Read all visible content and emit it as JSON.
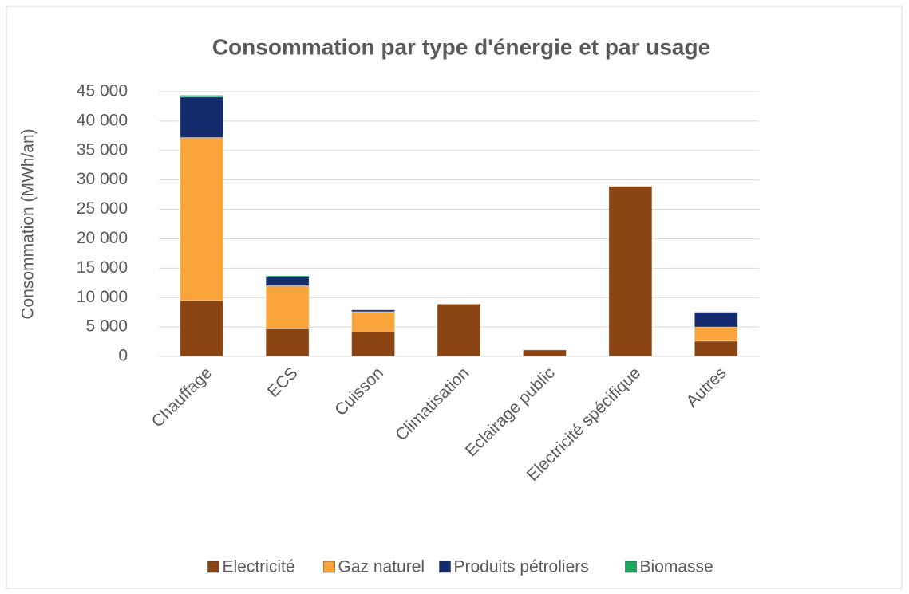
{
  "chart_data": {
    "type": "stacked_bar",
    "title": "Consommation par type d'énergie et par usage",
    "y_label": "Consommation (MWh/an)",
    "categories": [
      "Chauffage",
      "ECS",
      "Cuisson",
      "Climatisation",
      "Eclairage public",
      "Electricité spécifique",
      "Autres"
    ],
    "series": [
      {
        "name": "Electricité",
        "color": "#8b4513",
        "values": [
          9500,
          4700,
          4300,
          8900,
          1100,
          28900,
          2600
        ]
      },
      {
        "name": "Gaz naturel",
        "color": "#f9a53c",
        "values": [
          27700,
          7300,
          3300,
          0,
          0,
          0,
          2400
        ]
      },
      {
        "name": "Produits pétroliers",
        "color": "#132c6e",
        "values": [
          6900,
          1500,
          300,
          0,
          0,
          0,
          2500
        ]
      },
      {
        "name": "Biomasse",
        "color": "#1ea55e",
        "values": [
          300,
          200,
          0,
          0,
          0,
          0,
          0
        ]
      }
    ],
    "ylim": [
      0,
      45000
    ],
    "yticks": [
      0,
      {
        "value": 5000,
        "label": "5 000"
      },
      {
        "value": 10000,
        "label": "10 000"
      },
      {
        "value": 15000,
        "label": "15 000"
      },
      {
        "value": 20000,
        "label": "20 000"
      },
      {
        "value": 25000,
        "label": "25 000"
      },
      {
        "value": 30000,
        "label": "30 000"
      },
      {
        "value": 35000,
        "label": "35 000"
      },
      {
        "value": 40000,
        "label": "40 000"
      },
      {
        "value": 45000,
        "label": "45 000"
      }
    ],
    "grid": true,
    "legend": "bottom"
  }
}
